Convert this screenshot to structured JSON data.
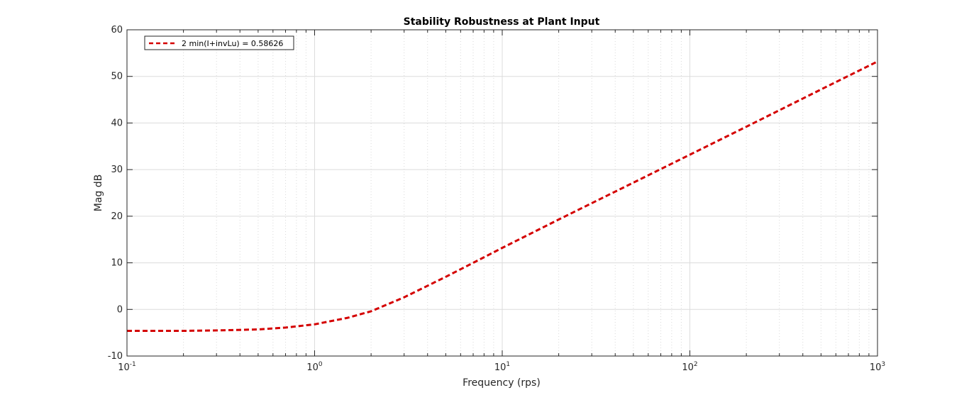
{
  "chart_data": {
    "type": "line",
    "title": "Stability Robustness at Plant Input",
    "xlabel": "Frequency (rps)",
    "ylabel": "Mag dB",
    "xscale": "log",
    "xlim": [
      0.1,
      1000
    ],
    "ylim": [
      -10,
      60
    ],
    "xticks": [
      {
        "value": 0.1,
        "base": "10",
        "exp": "-1"
      },
      {
        "value": 1,
        "base": "10",
        "exp": "0"
      },
      {
        "value": 10,
        "base": "10",
        "exp": "1"
      },
      {
        "value": 100,
        "base": "10",
        "exp": "2"
      },
      {
        "value": 1000,
        "base": "10",
        "exp": "3"
      }
    ],
    "yticks": [
      -10,
      0,
      10,
      20,
      30,
      40,
      50,
      60
    ],
    "grid": true,
    "minor_grid": true,
    "legend_position": "top-left",
    "series": [
      {
        "name": "2 min(I+invLu) = 0.58626",
        "color": "#d40000",
        "line_style": "dashed",
        "x": [
          0.1,
          0.2,
          0.3,
          0.5,
          0.7,
          1.0,
          1.5,
          2.0,
          3.0,
          5.0,
          7.0,
          10,
          20,
          50,
          100,
          200,
          500,
          1000
        ],
        "y": [
          -4.6,
          -4.6,
          -4.5,
          -4.3,
          -3.9,
          -3.2,
          -1.8,
          -0.4,
          2.6,
          7.0,
          10.0,
          13.2,
          19.3,
          27.2,
          33.2,
          39.2,
          47.2,
          53.2
        ]
      }
    ]
  }
}
